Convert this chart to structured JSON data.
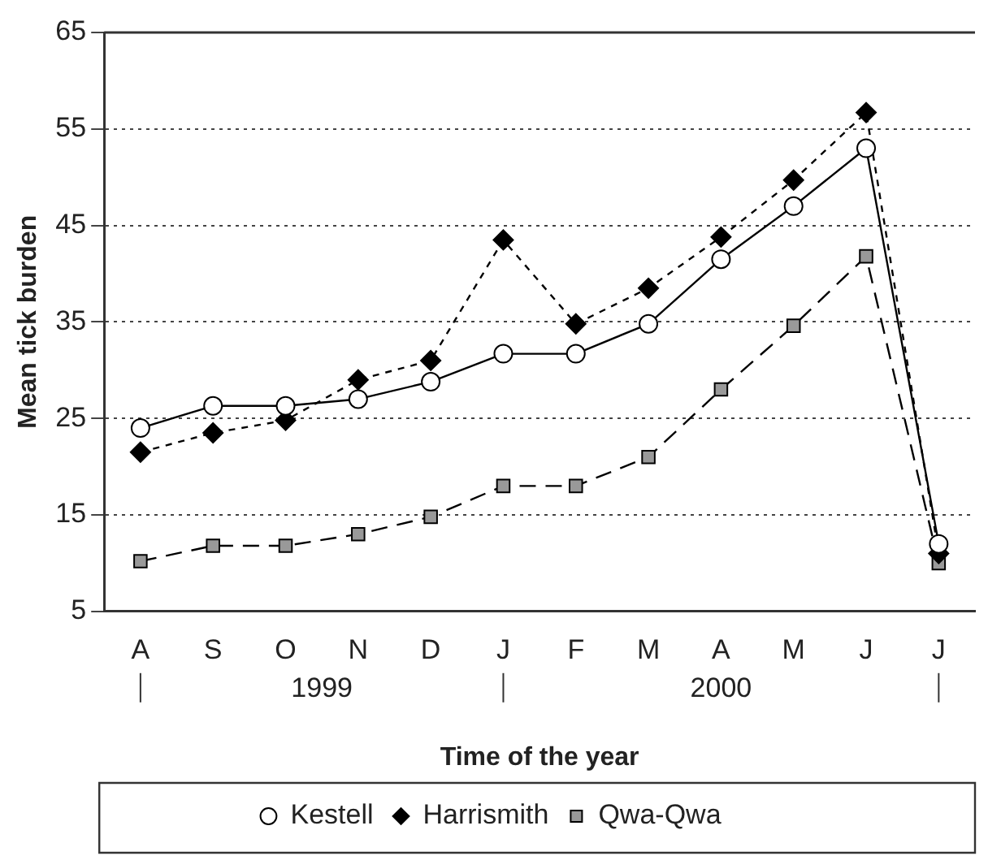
{
  "chart_data": {
    "type": "line",
    "xlabel": "Time of the year",
    "ylabel": "Mean tick burden",
    "categories": [
      "A",
      "S",
      "O",
      "N",
      "D",
      "J",
      "F",
      "M",
      "A",
      "M",
      "J",
      "J"
    ],
    "annotations": [
      "1999",
      "2000"
    ],
    "ylim": [
      5,
      65
    ],
    "yticks": [
      5,
      15,
      25,
      35,
      45,
      55,
      65
    ],
    "grid": "y",
    "legend": "bottom",
    "series": [
      {
        "name": "Kestell",
        "color": "#000000",
        "marker": "circle",
        "line_style": "solid",
        "values": [
          24,
          26.3,
          26.3,
          27,
          28.8,
          31.7,
          31.7,
          34.8,
          41.5,
          47,
          53,
          12
        ]
      },
      {
        "name": "Harrismith",
        "color": "#000000",
        "marker": "diamond",
        "line_style": "dotted",
        "values": [
          21.5,
          23.5,
          24.8,
          29,
          31,
          43.5,
          34.8,
          38.5,
          43.8,
          49.7,
          56.7,
          11
        ]
      },
      {
        "name": "Qwa-Qwa",
        "color": "#999999",
        "marker": "square",
        "line_style": "dashed",
        "values": [
          10.2,
          11.8,
          11.8,
          13,
          14.8,
          18,
          18,
          21,
          28,
          34.6,
          41.8,
          10
        ]
      }
    ]
  }
}
